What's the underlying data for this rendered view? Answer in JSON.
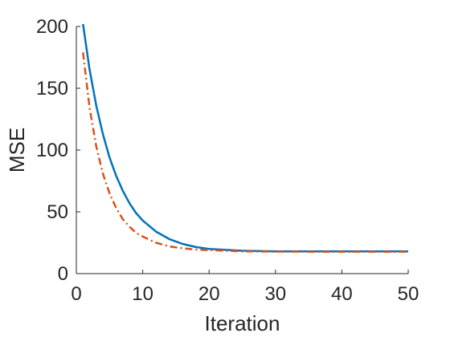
{
  "chart_data": {
    "type": "line",
    "xlabel": "Iteration",
    "ylabel": "MSE",
    "xlim": [
      0,
      50
    ],
    "ylim": [
      0,
      200
    ],
    "xticks": [
      0,
      10,
      20,
      30,
      40,
      50
    ],
    "yticks": [
      0,
      50,
      100,
      150,
      200
    ],
    "xtick_labels": [
      "0",
      "10",
      "20",
      "30",
      "40",
      "50"
    ],
    "ytick_labels": [
      "0",
      "50",
      "100",
      "150",
      "200"
    ],
    "grid": false,
    "series": [
      {
        "line_style": "solid",
        "color": "#0072BD",
        "x": [
          1,
          2,
          3,
          4,
          5,
          6,
          7,
          8,
          9,
          10,
          12,
          14,
          16,
          18,
          20,
          25,
          30,
          35,
          40,
          45,
          50
        ],
        "y": [
          202,
          165,
          136,
          113,
          94,
          79,
          67,
          57,
          49,
          43,
          34,
          28,
          24,
          21.5,
          20,
          18.5,
          18,
          18,
          18,
          18,
          18
        ]
      },
      {
        "line_style": "dash-dot",
        "color": "#D95319",
        "x": [
          1,
          2,
          3,
          4,
          5,
          6,
          7,
          8,
          9,
          10,
          12,
          14,
          16,
          18,
          20,
          25,
          30,
          35,
          40,
          45,
          50
        ],
        "y": [
          179,
          134,
          103,
          81,
          65,
          53,
          44,
          38,
          33,
          30,
          25,
          22,
          20.5,
          19.5,
          19,
          18,
          17.8,
          17.7,
          17.7,
          17.7,
          17.7
        ]
      }
    ]
  }
}
